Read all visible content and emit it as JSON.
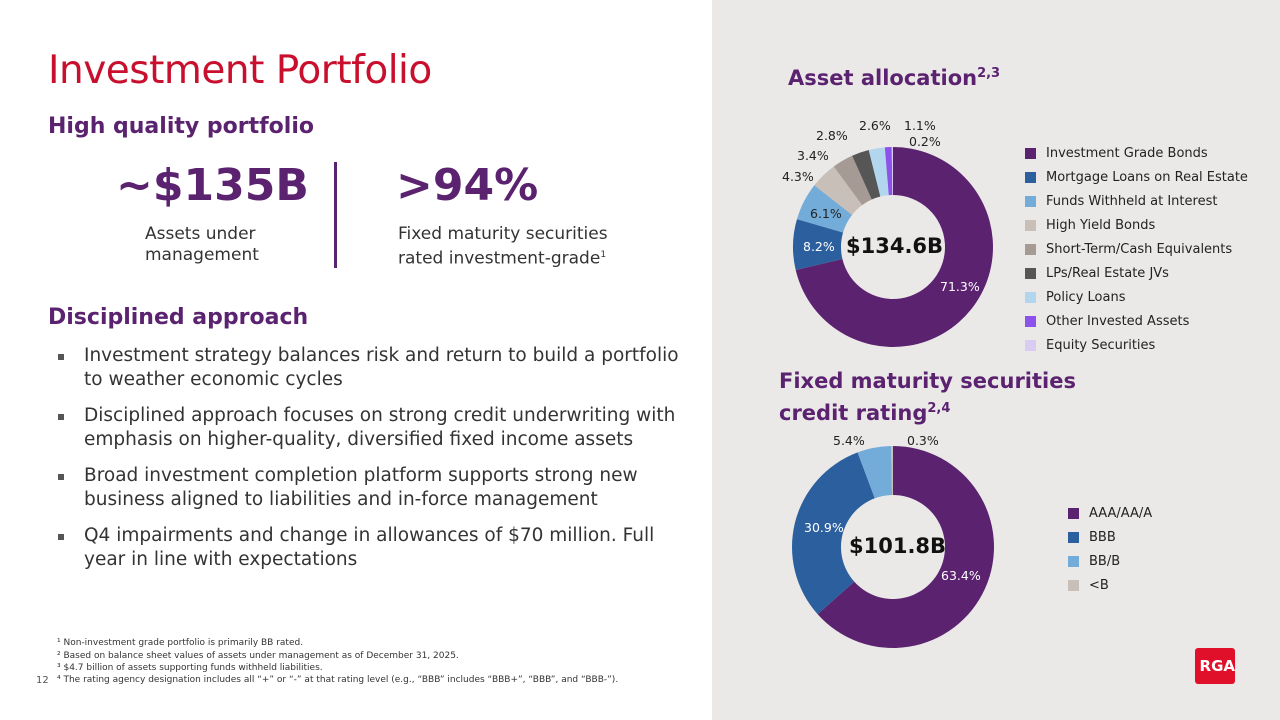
{
  "title": "Investment Portfolio",
  "left": {
    "section1": "High quality portfolio",
    "stat1": {
      "value": "~$135B",
      "label": "Assets under management"
    },
    "stat2": {
      "value": ">94%",
      "label": "Fixed maturity securities rated investment-grade",
      "sup": "1"
    },
    "section2": "Disciplined approach",
    "bullets": [
      "Investment strategy balances risk and return to build a portfolio to weather economic cycles",
      "Disciplined approach focuses on strong credit underwriting with emphasis on higher-quality, diversified fixed income assets",
      "Broad investment completion platform supports strong new business aligned to liabilities and in-force management",
      "Q4 impairments and change in allowances of $70 million. Full year in line with expectations"
    ]
  },
  "footnotes": [
    "¹ Non-investment grade portfolio is primarily BB rated.",
    "² Based on balance sheet values of assets under management as of December 31, 2025.",
    "³ $4.7 billion of assets supporting funds withheld liabilities.",
    "⁴ The rating agency designation includes all “+” or “-” at that rating level (e.g., “BBB” includes “BBB+”, “BBB”, and “BBB-”)."
  ],
  "page_number": "12",
  "logo_text": "RGA",
  "chart_data": [
    {
      "type": "pie",
      "donut": true,
      "title": "Asset allocation",
      "title_sup": "2,3",
      "center_label": "$134.6B",
      "categories": [
        "Investment Grade Bonds",
        "Mortgage Loans on Real Estate",
        "Funds Withheld at Interest",
        "High Yield Bonds",
        "Short-Term/Cash Equivalents",
        "LPs/Real Estate JVs",
        "Policy Loans",
        "Other Invested Assets",
        "Equity Securities"
      ],
      "values": [
        71.3,
        8.2,
        6.1,
        4.3,
        3.4,
        2.8,
        2.6,
        1.1,
        0.2
      ],
      "labels": [
        "71.3%",
        "8.2%",
        "6.1%",
        "4.3%",
        "3.4%",
        "2.8%",
        "2.6%",
        "1.1%",
        "0.2%"
      ],
      "colors": [
        "#5b2270",
        "#2b5f9e",
        "#74acd9",
        "#c8bfb8",
        "#a69b94",
        "#565656",
        "#b3d6ef",
        "#8c52ea",
        "#dacbf3"
      ],
      "legend": "right"
    },
    {
      "type": "pie",
      "donut": true,
      "title_line1": "Fixed maturity securities",
      "title_line2": "credit rating",
      "title_sup": "2,4",
      "center_label": "$101.8B",
      "categories": [
        "AAA/AA/A",
        "BBB",
        "BB/B",
        "<B"
      ],
      "values": [
        63.4,
        30.9,
        5.4,
        0.3
      ],
      "labels": [
        "63.4%",
        "30.9%",
        "5.4%",
        "0.3%"
      ],
      "colors": [
        "#5b2270",
        "#2b5f9e",
        "#74acd9",
        "#c8bfb8"
      ],
      "legend": "right"
    }
  ]
}
